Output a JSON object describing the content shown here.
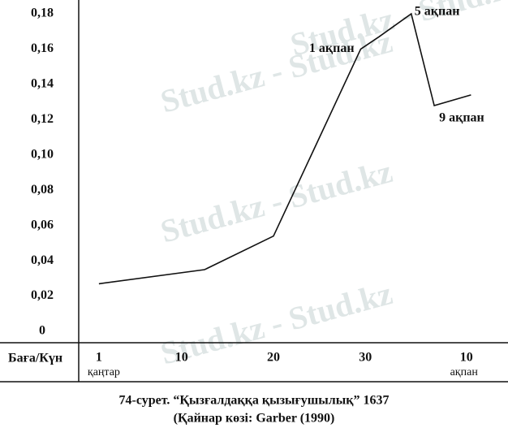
{
  "chart_data": {
    "type": "line",
    "x_label": "Баға/Күн",
    "caption": [
      "74-сурет. “Қызғалдаққа қызығушылық” 1637",
      "(Қайнар көзі: Garber (1990)"
    ],
    "x": [
      1,
      12.5,
      20,
      29.5,
      31.5,
      35,
      37.5,
      41.5
    ],
    "values": [
      0.027,
      0.035,
      0.054,
      0.16,
      0.167,
      0.18,
      0.128,
      0.134
    ],
    "color": "#111111",
    "xlim": [
      -1.2,
      45
    ],
    "ylim": [
      0,
      0.18
    ],
    "xticks": [
      1,
      10,
      20,
      30,
      {
        "value": 41,
        "label": "10"
      }
    ],
    "x_tick_sublabels": [
      "қаңтар",
      null,
      null,
      null,
      "ақпан"
    ],
    "yticks": [
      0,
      {
        "value": 0.02,
        "label": "0,02"
      },
      {
        "value": 0.04,
        "label": "0,04"
      },
      {
        "value": 0.06,
        "label": "0,06"
      },
      {
        "value": 0.08,
        "label": "0,08"
      },
      {
        "value": 0.1,
        "label": "0,10"
      },
      {
        "value": 0.12,
        "label": "0,12"
      },
      {
        "value": 0.14,
        "label": "0,14"
      },
      {
        "value": 0.16,
        "label": "0,16"
      },
      {
        "value": 0.18,
        "label": "0,18"
      }
    ],
    "annotations": [
      "1 ақпан",
      "5 ақпан",
      "9 ақпан"
    ],
    "watermark": "Stud.kz - Stud.kz"
  }
}
